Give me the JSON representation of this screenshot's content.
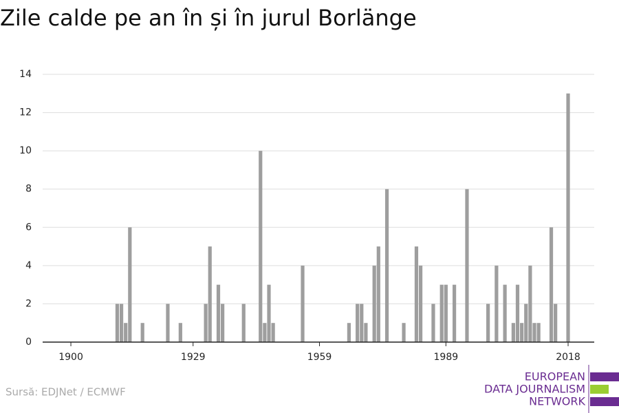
{
  "chart_data": {
    "type": "bar",
    "title": "Zile calde pe an în și în jurul Borlänge",
    "x": [
      1911,
      1912,
      1913,
      1914,
      1917,
      1923,
      1926,
      1932,
      1933,
      1935,
      1936,
      1941,
      1945,
      1946,
      1947,
      1948,
      1955,
      1966,
      1968,
      1969,
      1970,
      1972,
      1973,
      1975,
      1979,
      1982,
      1983,
      1986,
      1988,
      1989,
      1991,
      1994,
      1999,
      2001,
      2003,
      2005,
      2006,
      2007,
      2008,
      2009,
      2010,
      2011,
      2014,
      2015,
      2018
    ],
    "values": [
      2,
      2,
      1,
      6,
      1,
      2,
      1,
      2,
      5,
      3,
      2,
      2,
      10,
      1,
      3,
      1,
      4,
      1,
      2,
      2,
      1,
      4,
      5,
      8,
      1,
      5,
      4,
      2,
      3,
      3,
      3,
      8,
      2,
      4,
      3,
      1,
      3,
      1,
      2,
      4,
      1,
      1,
      6,
      2,
      13
    ],
    "color": "#9e9e9e",
    "xlim": [
      1893.3,
      2024.2
    ],
    "xticks": [
      1900,
      1929,
      1959,
      1989,
      2018
    ],
    "ylim": [
      0,
      14
    ],
    "yticks": [
      0,
      2,
      4,
      6,
      8,
      10,
      12,
      14
    ],
    "grid": true,
    "source": "Sursă: EDJNet / ECMWF",
    "logo": [
      "EUROPEAN",
      "DATA JOURNALISM",
      "NETWORK"
    ]
  }
}
